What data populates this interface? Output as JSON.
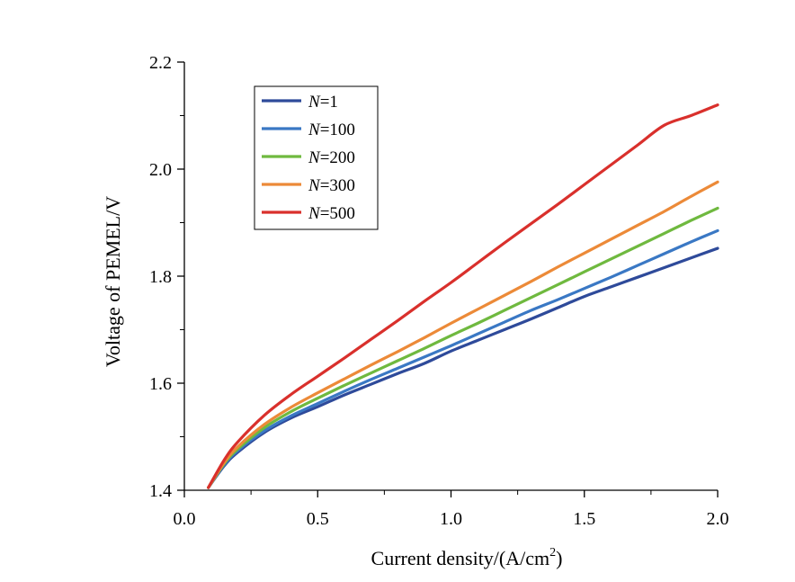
{
  "chart_data": {
    "type": "line",
    "xlabel": "Current density/(A/cm",
    "xlabel_sup": "2",
    "xlabel_close": ")",
    "ylabel": "Voltage of PEMEL/V",
    "xlim": [
      0.0,
      2.0
    ],
    "ylim": [
      1.4,
      2.2
    ],
    "xticks": [
      "0.0",
      "0.5",
      "1.0",
      "1.5",
      "2.0"
    ],
    "yticks": [
      "1.4",
      "1.6",
      "1.8",
      "2.0",
      "2.2"
    ],
    "x_minor_step": 0.25,
    "y_minor_step": 0.1,
    "legend_position": "top-left",
    "x": [
      0.09,
      0.15,
      0.2,
      0.3,
      0.4,
      0.5,
      0.6,
      0.7,
      0.8,
      0.9,
      1.0,
      1.1,
      1.2,
      1.3,
      1.4,
      1.5,
      1.6,
      1.7,
      1.8,
      1.9,
      2.0
    ],
    "series": [
      {
        "name": "N=1",
        "name_italic": "N",
        "name_rest": "=1",
        "color": "#2e4a9a",
        "values": [
          1.405,
          1.446,
          1.471,
          1.508,
          1.535,
          1.556,
          1.578,
          1.598,
          1.618,
          1.637,
          1.66,
          1.68,
          1.7,
          1.72,
          1.741,
          1.762,
          1.78,
          1.798,
          1.816,
          1.834,
          1.852
        ]
      },
      {
        "name": "N=100",
        "name_italic": "N",
        "name_rest": "=100",
        "color": "#3a78c4",
        "values": [
          1.405,
          1.448,
          1.474,
          1.511,
          1.539,
          1.562,
          1.585,
          1.607,
          1.628,
          1.649,
          1.67,
          1.692,
          1.714,
          1.736,
          1.756,
          1.777,
          1.798,
          1.82,
          1.842,
          1.864,
          1.885
        ]
      },
      {
        "name": "N=200",
        "name_italic": "N",
        "name_rest": "=200",
        "color": "#6fb93f",
        "values": [
          1.405,
          1.45,
          1.477,
          1.517,
          1.547,
          1.572,
          1.596,
          1.619,
          1.642,
          1.665,
          1.689,
          1.712,
          1.736,
          1.76,
          1.784,
          1.808,
          1.832,
          1.856,
          1.88,
          1.904,
          1.927
        ]
      },
      {
        "name": "N=300",
        "name_italic": "N",
        "name_rest": "=300",
        "color": "#ec8a38",
        "values": [
          1.405,
          1.452,
          1.481,
          1.523,
          1.555,
          1.582,
          1.608,
          1.634,
          1.659,
          1.685,
          1.712,
          1.738,
          1.764,
          1.79,
          1.817,
          1.843,
          1.869,
          1.895,
          1.921,
          1.949,
          1.976
        ]
      },
      {
        "name": "N=500",
        "name_italic": "N",
        "name_rest": "=500",
        "color": "#d9302c",
        "values": [
          1.405,
          1.457,
          1.49,
          1.54,
          1.579,
          1.613,
          1.647,
          1.682,
          1.717,
          1.753,
          1.788,
          1.825,
          1.862,
          1.898,
          1.934,
          1.971,
          2.008,
          2.045,
          2.082,
          2.1,
          2.12
        ]
      }
    ]
  }
}
